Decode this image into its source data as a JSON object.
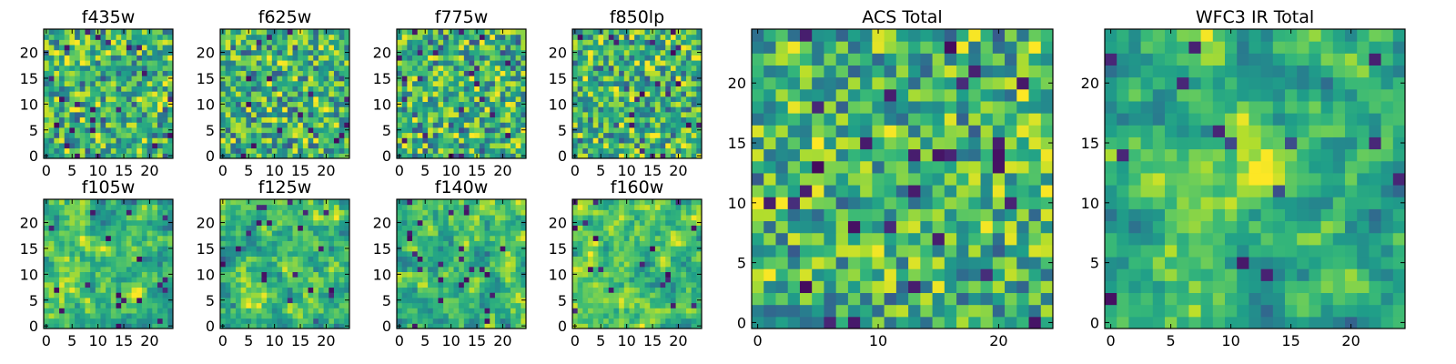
{
  "colormap": {
    "name": "viridis",
    "stops": [
      "#440154",
      "#482777",
      "#3e4989",
      "#31688e",
      "#26828e",
      "#1f9e89",
      "#35b779",
      "#6ece58",
      "#b5de2b",
      "#fde725"
    ]
  },
  "chart_data": [
    {
      "type": "heatmap",
      "title": "f435w",
      "grid_size": [
        25,
        25
      ],
      "xlim": [
        -0.5,
        24.5
      ],
      "ylim": [
        -0.5,
        24.5
      ],
      "xticks": [
        0,
        5,
        10,
        15,
        20
      ],
      "yticks": [
        0,
        5,
        10,
        15,
        20
      ],
      "seed": 11,
      "smooth": 0,
      "noise": 0.55
    },
    {
      "type": "heatmap",
      "title": "f625w",
      "grid_size": [
        25,
        25
      ],
      "xlim": [
        -0.5,
        24.5
      ],
      "ylim": [
        -0.5,
        24.5
      ],
      "xticks": [
        0,
        5,
        10,
        15,
        20
      ],
      "yticks": [
        0,
        5,
        10,
        15,
        20
      ],
      "seed": 23,
      "smooth": 0,
      "noise": 0.55
    },
    {
      "type": "heatmap",
      "title": "f775w",
      "grid_size": [
        25,
        25
      ],
      "xlim": [
        -0.5,
        24.5
      ],
      "ylim": [
        -0.5,
        24.5
      ],
      "xticks": [
        0,
        5,
        10,
        15,
        20
      ],
      "yticks": [
        0,
        5,
        10,
        15,
        20
      ],
      "seed": 37,
      "smooth": 0,
      "noise": 0.55
    },
    {
      "type": "heatmap",
      "title": "f850lp",
      "grid_size": [
        25,
        25
      ],
      "xlim": [
        -0.5,
        24.5
      ],
      "ylim": [
        -0.5,
        24.5
      ],
      "xticks": [
        0,
        5,
        10,
        15,
        20
      ],
      "yticks": [
        0,
        5,
        10,
        15,
        20
      ],
      "seed": 41,
      "smooth": 0,
      "noise": 0.55
    },
    {
      "type": "heatmap",
      "title": "f105w",
      "grid_size": [
        25,
        25
      ],
      "xlim": [
        -0.5,
        24.5
      ],
      "ylim": [
        -0.5,
        24.5
      ],
      "xticks": [
        0,
        5,
        10,
        15,
        20
      ],
      "yticks": [
        0,
        5,
        10,
        15,
        20
      ],
      "seed": 53,
      "smooth": 1,
      "noise": 0.45
    },
    {
      "type": "heatmap",
      "title": "f125w",
      "grid_size": [
        25,
        25
      ],
      "xlim": [
        -0.5,
        24.5
      ],
      "ylim": [
        -0.5,
        24.5
      ],
      "xticks": [
        0,
        5,
        10,
        15,
        20
      ],
      "yticks": [
        0,
        5,
        10,
        15,
        20
      ],
      "seed": 67,
      "smooth": 1,
      "noise": 0.45
    },
    {
      "type": "heatmap",
      "title": "f140w",
      "grid_size": [
        25,
        25
      ],
      "xlim": [
        -0.5,
        24.5
      ],
      "ylim": [
        -0.5,
        24.5
      ],
      "xticks": [
        0,
        5,
        10,
        15,
        20
      ],
      "yticks": [
        0,
        5,
        10,
        15,
        20
      ],
      "seed": 79,
      "smooth": 1,
      "noise": 0.45
    },
    {
      "type": "heatmap",
      "title": "f160w",
      "grid_size": [
        25,
        25
      ],
      "xlim": [
        -0.5,
        24.5
      ],
      "ylim": [
        -0.5,
        24.5
      ],
      "xticks": [
        0,
        5,
        10,
        15,
        20
      ],
      "yticks": [
        0,
        5,
        10,
        15,
        20
      ],
      "seed": 83,
      "smooth": 1,
      "noise": 0.45
    },
    {
      "type": "heatmap",
      "title": "ACS Total",
      "grid_size": [
        25,
        25
      ],
      "xlim": [
        -0.5,
        24.5
      ],
      "ylim": [
        -0.5,
        24.5
      ],
      "xticks": [
        0,
        10,
        20
      ],
      "yticks": [
        0,
        5,
        10,
        15,
        20
      ],
      "seed": 97,
      "smooth": 0,
      "noise": 0.35
    },
    {
      "type": "heatmap",
      "title": "WFC3 IR Total",
      "grid_size": [
        25,
        25
      ],
      "xlim": [
        -0.5,
        24.5
      ],
      "ylim": [
        -0.5,
        24.5
      ],
      "xticks": [
        0,
        5,
        10,
        15,
        20
      ],
      "yticks": [
        0,
        5,
        10,
        15,
        20
      ],
      "seed": 101,
      "smooth": 1,
      "noise": 0.4,
      "bright_center": [
        12.5,
        13
      ]
    }
  ]
}
